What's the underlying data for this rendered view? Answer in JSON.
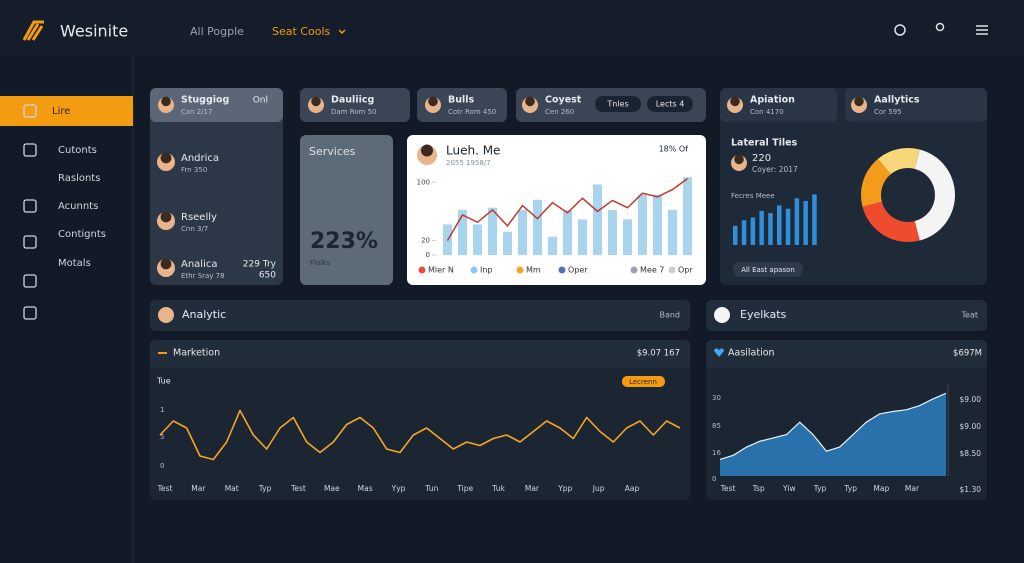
{
  "header": {
    "brand": "Wesinite",
    "nav": [
      "All Pogple",
      "Seat Cools"
    ]
  },
  "sidebar": {
    "items": [
      "Lire",
      "Cutonts",
      "Raslonts",
      "Acunnts",
      "Contignts",
      "Motals"
    ],
    "active": 0
  },
  "top_cards": [
    {
      "title": "Stuggiog",
      "sub": "Cxn 2/17",
      "action": "Onl"
    },
    {
      "title": "Dauliicg",
      "sub": "Dam Rom 50"
    },
    {
      "title": "Bulls",
      "sub": "Cotr Rom 450"
    },
    {
      "title": "Coyest",
      "sub": "Cen 260",
      "buttons": [
        "Tnles",
        "Lects 4"
      ]
    },
    {
      "title": "Apiation",
      "sub": "Con 4170"
    },
    {
      "title": "Aallytics",
      "sub": "Cor 595"
    }
  ],
  "people": [
    {
      "name": "Andrica",
      "sub": "Frn 350"
    },
    {
      "name": "Rseelly",
      "sub": "Cnn 3/7"
    },
    {
      "name": "Analica",
      "sub": "Ethr Sray 78",
      "extra": "229 Try",
      "value": "650"
    }
  ],
  "services": {
    "title": "Services",
    "value": "223%",
    "label": "Flolks"
  },
  "trend_chart": {
    "type": "bar",
    "title": "Lueh. Me",
    "subtitle": "2055 1958/7",
    "action": "18% Of",
    "ylim": [
      0,
      110
    ],
    "yticks": [
      0,
      20,
      100
    ],
    "bars": {
      "color": "#a9d4ee",
      "values": [
        42,
        62,
        42,
        65,
        32,
        62,
        76,
        25,
        62,
        49,
        97,
        62,
        49,
        83,
        83,
        62,
        107
      ]
    },
    "line": {
      "color": "#c0392b",
      "values": [
        20,
        55,
        45,
        62,
        40,
        68,
        50,
        72,
        58,
        78,
        60,
        75,
        65,
        85,
        80,
        90,
        105
      ]
    },
    "legend": [
      {
        "name": "Mler N",
        "color": "#e74c3c"
      },
      {
        "name": "Inp",
        "color": "#8ec9ef"
      },
      {
        "name": "Mm",
        "color": "#f5a623"
      },
      {
        "name": "Oper",
        "color": "#5b6fb5"
      },
      {
        "name": "Mee 7",
        "color": "#9aa3ae"
      },
      {
        "name": "Opr",
        "color": "#c9ced4"
      }
    ]
  },
  "lateral": {
    "title": "Lateral Tiles",
    "value": "220",
    "subtitle": "Coyer: 2017",
    "label": "Fecres Meee",
    "button": "All East apason",
    "ylim": [
      0,
      100
    ],
    "bars": {
      "color": "#2f8fdb",
      "values": [
        35,
        45,
        50,
        62,
        58,
        72,
        66,
        85,
        80,
        92
      ]
    }
  },
  "donut": {
    "type": "pie",
    "values": [
      42,
      25,
      18,
      15
    ],
    "colors": [
      "#f4f4f4",
      "#ef4b2f",
      "#f59a1b",
      "#f7d77a"
    ]
  },
  "sections": [
    {
      "title": "Analytic",
      "action": "Band"
    },
    {
      "title": "Eyelkats",
      "action": "Teat"
    }
  ],
  "marketing": {
    "type": "line",
    "title": "Marketion",
    "value": "$9.07 167",
    "axis_label": "Tue",
    "badge": "Lecrenn",
    "y_labels": [
      "1",
      "5",
      "0"
    ],
    "categories": [
      "Test",
      "Mar",
      "Mat",
      "Typ",
      "Test",
      "Mae",
      "Mas",
      "Yyp",
      "Tun",
      "Tipe",
      "Tuk",
      "Mar",
      "Ypp",
      "Jup",
      "Aap"
    ],
    "ylim": [
      0,
      10
    ],
    "color": "#f5a623",
    "values": [
      5,
      7,
      6,
      2,
      1.5,
      4,
      8.5,
      5,
      3,
      6,
      7.5,
      4,
      2.5,
      4,
      6.5,
      7.5,
      6,
      3,
      2.5,
      5,
      6,
      4.5,
      3,
      4,
      3.5,
      4.5,
      5,
      4,
      5.5,
      7,
      6,
      4.5,
      7.5,
      5.5,
      4,
      6,
      7,
      5,
      7,
      6
    ]
  },
  "assimilation": {
    "type": "area",
    "title": "Aasilation",
    "value": "$697M",
    "y_labels": [
      "30",
      "85",
      "16",
      "0"
    ],
    "y2_labels": [
      "$9.00",
      "$9.00",
      "$8.50",
      "$1.30"
    ],
    "categories": [
      "Test",
      "Tsp",
      "Yiw",
      "Typ",
      "Typ",
      "Map",
      "Mar"
    ],
    "ylim": [
      0,
      11
    ],
    "color": "#2a7ab8",
    "values": [
      2,
      2.5,
      3.5,
      4.2,
      4.6,
      5,
      6.5,
      5,
      3,
      3.5,
      5,
      6.5,
      7.5,
      7.8,
      8,
      8.5,
      9.3,
      10
    ]
  }
}
